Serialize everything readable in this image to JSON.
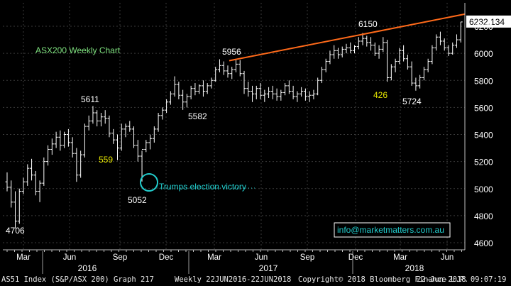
{
  "chart_data": {
    "type": "ohlc",
    "title": "ASX200 Weekly Chart",
    "ylim": [
      4600,
      6300
    ],
    "yticks": [
      4600,
      4800,
      5000,
      5200,
      5400,
      5600,
      5800,
      6000,
      6200
    ],
    "month_labels": [
      "Mar",
      "Jun",
      "Sep",
      "Dec",
      "Mar",
      "Jun",
      "Sep",
      "Dec",
      "Mar",
      "Jun"
    ],
    "year_labels": [
      "2016",
      "2017",
      "2018"
    ],
    "last_value_label": "6232.134",
    "annotations": [
      {
        "text": "4706",
        "color": "#ffffff"
      },
      {
        "text": "5611",
        "color": "#ffffff"
      },
      {
        "text": "559",
        "color": "#e6e600"
      },
      {
        "text": "5052",
        "color": "#ffffff"
      },
      {
        "text": "Trumps election victory",
        "color": "#22cccc"
      },
      {
        "text": "5582",
        "color": "#ffffff"
      },
      {
        "text": "5956",
        "color": "#ffffff"
      },
      {
        "text": "6150",
        "color": "#ffffff"
      },
      {
        "text": "426",
        "color": "#e6e600"
      },
      {
        "text": "5724",
        "color": "#ffffff"
      }
    ],
    "trendline": {
      "from": 5956,
      "to": 6290,
      "color": "#ff6a1a"
    },
    "watermark": "info@marketmatters.com.au",
    "bars": [
      [
        5050,
        5120,
        4980,
        5010
      ],
      [
        5010,
        5060,
        4860,
        4900
      ],
      [
        4900,
        4980,
        4706,
        4760
      ],
      [
        4760,
        5000,
        4740,
        4980
      ],
      [
        4980,
        5080,
        4960,
        5050
      ],
      [
        5050,
        5180,
        5020,
        5150
      ],
      [
        5150,
        5220,
        5060,
        5100
      ],
      [
        5100,
        5130,
        4950,
        4980
      ],
      [
        4980,
        5060,
        4900,
        5040
      ],
      [
        5040,
        5230,
        5020,
        5200
      ],
      [
        5200,
        5320,
        5170,
        5290
      ],
      [
        5290,
        5370,
        5250,
        5330
      ],
      [
        5330,
        5420,
        5300,
        5380
      ],
      [
        5380,
        5430,
        5280,
        5320
      ],
      [
        5320,
        5420,
        5300,
        5400
      ],
      [
        5400,
        5440,
        5310,
        5340
      ],
      [
        5340,
        5380,
        5230,
        5260
      ],
      [
        5260,
        5300,
        5050,
        5100
      ],
      [
        5100,
        5280,
        5080,
        5250
      ],
      [
        5250,
        5480,
        5230,
        5460
      ],
      [
        5460,
        5540,
        5430,
        5500
      ],
      [
        5500,
        5611,
        5480,
        5560
      ],
      [
        5560,
        5580,
        5460,
        5500
      ],
      [
        5500,
        5560,
        5460,
        5530
      ],
      [
        5530,
        5580,
        5480,
        5520
      ],
      [
        5520,
        5540,
        5380,
        5410
      ],
      [
        5410,
        5440,
        5330,
        5360
      ],
      [
        5360,
        5400,
        5210,
        5300
      ],
      [
        5300,
        5480,
        5280,
        5440
      ],
      [
        5440,
        5480,
        5380,
        5460
      ],
      [
        5460,
        5500,
        5420,
        5440
      ],
      [
        5440,
        5460,
        5300,
        5320
      ],
      [
        5320,
        5360,
        5200,
        5240
      ],
      [
        5240,
        5280,
        5052,
        5290
      ],
      [
        5290,
        5360,
        5270,
        5340
      ],
      [
        5340,
        5400,
        5290,
        5370
      ],
      [
        5370,
        5460,
        5340,
        5440
      ],
      [
        5440,
        5560,
        5420,
        5540
      ],
      [
        5540,
        5600,
        5510,
        5580
      ],
      [
        5580,
        5660,
        5560,
        5640
      ],
      [
        5640,
        5720,
        5620,
        5700
      ],
      [
        5700,
        5830,
        5680,
        5770
      ],
      [
        5770,
        5790,
        5660,
        5690
      ],
      [
        5690,
        5730,
        5582,
        5640
      ],
      [
        5640,
        5700,
        5600,
        5680
      ],
      [
        5680,
        5760,
        5660,
        5740
      ],
      [
        5740,
        5780,
        5690,
        5720
      ],
      [
        5720,
        5770,
        5700,
        5760
      ],
      [
        5760,
        5800,
        5680,
        5720
      ],
      [
        5720,
        5780,
        5700,
        5760
      ],
      [
        5760,
        5820,
        5740,
        5800
      ],
      [
        5800,
        5900,
        5790,
        5880
      ],
      [
        5880,
        5956,
        5860,
        5910
      ],
      [
        5910,
        5940,
        5840,
        5870
      ],
      [
        5870,
        5910,
        5820,
        5850
      ],
      [
        5850,
        5900,
        5810,
        5880
      ],
      [
        5880,
        5956,
        5860,
        5920
      ],
      [
        5920,
        5950,
        5830,
        5850
      ],
      [
        5850,
        5870,
        5700,
        5740
      ],
      [
        5740,
        5790,
        5680,
        5720
      ],
      [
        5720,
        5760,
        5640,
        5700
      ],
      [
        5700,
        5760,
        5660,
        5740
      ],
      [
        5740,
        5780,
        5660,
        5690
      ],
      [
        5690,
        5730,
        5640,
        5700
      ],
      [
        5700,
        5750,
        5670,
        5720
      ],
      [
        5720,
        5760,
        5660,
        5700
      ],
      [
        5700,
        5740,
        5650,
        5680
      ],
      [
        5680,
        5730,
        5650,
        5710
      ],
      [
        5710,
        5780,
        5690,
        5760
      ],
      [
        5760,
        5800,
        5700,
        5720
      ],
      [
        5720,
        5760,
        5660,
        5680
      ],
      [
        5680,
        5720,
        5640,
        5700
      ],
      [
        5700,
        5750,
        5680,
        5720
      ],
      [
        5720,
        5740,
        5650,
        5680
      ],
      [
        5680,
        5720,
        5640,
        5690
      ],
      [
        5690,
        5730,
        5660,
        5700
      ],
      [
        5700,
        5820,
        5690,
        5800
      ],
      [
        5800,
        5900,
        5780,
        5880
      ],
      [
        5880,
        5960,
        5860,
        5940
      ],
      [
        5940,
        6020,
        5920,
        5990
      ],
      [
        5990,
        6060,
        5960,
        6020
      ],
      [
        6020,
        6040,
        5960,
        5990
      ],
      [
        5990,
        6050,
        5970,
        6030
      ],
      [
        6030,
        6070,
        6000,
        6040
      ],
      [
        6040,
        6080,
        6000,
        6020
      ],
      [
        6020,
        6060,
        6000,
        6050
      ],
      [
        6050,
        6120,
        6030,
        6090
      ],
      [
        6090,
        6150,
        6060,
        6110
      ],
      [
        6110,
        6130,
        6050,
        6080
      ],
      [
        6080,
        6120,
        6020,
        6060
      ],
      [
        6060,
        6080,
        5980,
        6000
      ],
      [
        6000,
        6060,
        5960,
        6030
      ],
      [
        6030,
        6120,
        6010,
        6080
      ],
      [
        6080,
        6100,
        5790,
        5820
      ],
      [
        5820,
        5920,
        5800,
        5900
      ],
      [
        5900,
        5960,
        5860,
        5940
      ],
      [
        5940,
        6040,
        5920,
        6020
      ],
      [
        6020,
        6060,
        5940,
        5960
      ],
      [
        5960,
        5990,
        5880,
        5900
      ],
      [
        5900,
        5940,
        5760,
        5780
      ],
      [
        5780,
        5820,
        5724,
        5760
      ],
      [
        5760,
        5840,
        5740,
        5820
      ],
      [
        5820,
        5900,
        5800,
        5880
      ],
      [
        5880,
        5960,
        5860,
        5940
      ],
      [
        5940,
        6060,
        5920,
        6040
      ],
      [
        6040,
        6140,
        6020,
        6120
      ],
      [
        6120,
        6160,
        6060,
        6090
      ],
      [
        6090,
        6110,
        6020,
        6040
      ],
      [
        6040,
        6060,
        5980,
        6000
      ],
      [
        6000,
        6080,
        5990,
        6060
      ],
      [
        6060,
        6140,
        6040,
        6100
      ],
      [
        6100,
        6232,
        6080,
        6232
      ]
    ]
  },
  "footer": {
    "index_label": "AS51 Index (S&P/ASX 200) Graph 217",
    "range_label": "Weekly 22JUN2016-22JUN2018",
    "copyright": "Copyright© 2018 Bloomberg Finance L.P.",
    "timestamp": "22-Jun-2018 09:07:19"
  }
}
